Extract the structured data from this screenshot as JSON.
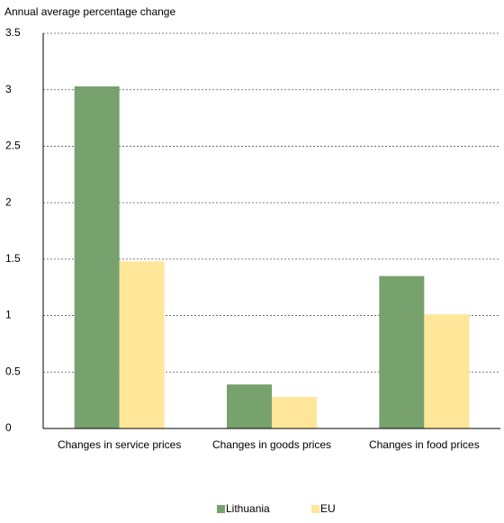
{
  "chart_data": {
    "type": "bar",
    "y_axis_label": "Annual average percentage change",
    "categories": [
      "Changes in service prices",
      "Changes in goods prices",
      "Changes in food prices"
    ],
    "series": [
      {
        "name": "Lithuania",
        "color": "#77a26d",
        "values": [
          3.03,
          0.39,
          1.35
        ]
      },
      {
        "name": "EU",
        "color": "#ffe699",
        "values": [
          1.48,
          0.28,
          1.01
        ]
      }
    ],
    "ylim": [
      0,
      3.5
    ],
    "yticks": [
      0,
      0.5,
      1,
      1.5,
      2,
      2.5,
      3,
      3.5
    ],
    "grid": true,
    "legend": "bottom"
  }
}
